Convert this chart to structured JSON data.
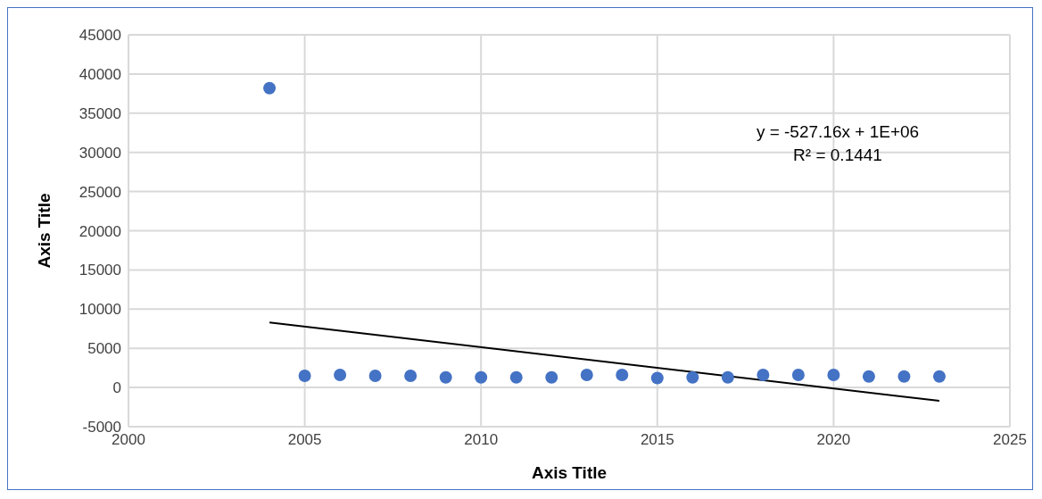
{
  "chart_data": {
    "type": "scatter",
    "xlabel": "Axis Title",
    "ylabel": "Axis Title",
    "x": [
      2004,
      2005,
      2006,
      2007,
      2008,
      2009,
      2010,
      2011,
      2012,
      2013,
      2014,
      2015,
      2016,
      2017,
      2018,
      2019,
      2020,
      2021,
      2022,
      2023
    ],
    "series": [
      {
        "color": "#4472c4",
        "marker": "circle",
        "values": [
          38200,
          1500,
          1600,
          1500,
          1500,
          1300,
          1300,
          1300,
          1300,
          1600,
          1600,
          1200,
          1300,
          1300,
          1600,
          1600,
          1600,
          1400,
          1400,
          1400
        ]
      },
      {
        "type": "line",
        "color": "#000000",
        "marker": "none",
        "line_style": "solid",
        "x": [
          2004,
          2023
        ],
        "values": [
          8300,
          -1700
        ]
      }
    ],
    "xlim": [
      2000,
      2025
    ],
    "xticks": [
      2000,
      2005,
      2010,
      2015,
      2020,
      2025
    ],
    "ylim": [
      -5000,
      45000
    ],
    "yticks": [
      -5000,
      0,
      5000,
      10000,
      15000,
      20000,
      25000,
      30000,
      35000,
      40000,
      45000
    ],
    "annotations": [
      "y = -527.16x + 1E+06",
      "R² = 0.1441"
    ],
    "grid": true,
    "legend": false
  }
}
